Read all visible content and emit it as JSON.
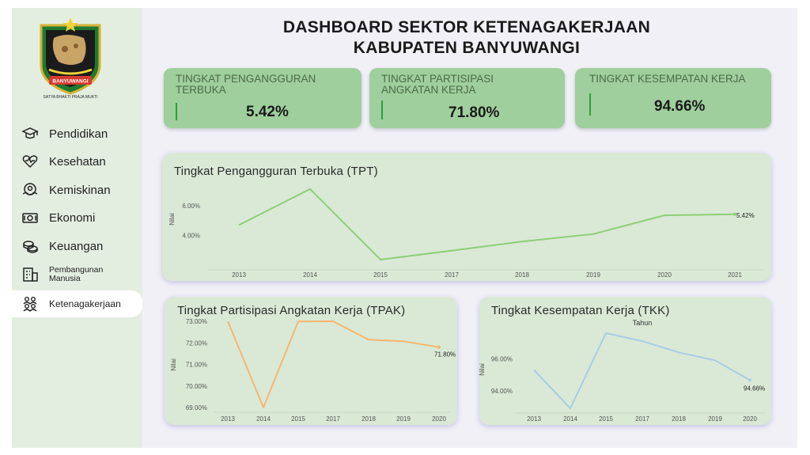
{
  "header": {
    "title_line1": "DASHBOARD SEKTOR KETENAGAKERJAAN",
    "title_line2": "KABUPATEN BANYUWANGI"
  },
  "logo": {
    "ribbon_text": "BANYUWANGI",
    "motto": "SATYA BHAKTI PRAJA MUKTI"
  },
  "sidebar": {
    "items": [
      {
        "label": "Pendidikan",
        "icon": "graduation-cap-icon"
      },
      {
        "label": "Kesehatan",
        "icon": "heart-pulse-icon"
      },
      {
        "label": "Kemiskinan",
        "icon": "hands-circle-icon"
      },
      {
        "label": "Ekonomi",
        "icon": "banknote-icon"
      },
      {
        "label": "Keuangan",
        "icon": "coins-icon"
      },
      {
        "label": "Pembangunan Manusia",
        "icon": "building-icon"
      },
      {
        "label": "Ketenagakerjaan",
        "icon": "people-icon"
      }
    ]
  },
  "kpis": [
    {
      "label": "TINGKAT PENGANGGURAN TERBUKA",
      "value": "5.42%"
    },
    {
      "label": "TINGKAT PARTISIPASI ANGKATAN KERJA",
      "value": "71.80%"
    },
    {
      "label": "TINGKAT KESEMPATAN KERJA",
      "value": "94.66%"
    }
  ],
  "colors": {
    "tpt": "#8ccf76",
    "tpak": "#f7b570",
    "tkk": "#a7cde6",
    "accent": "#2e9e3a"
  },
  "chart_data": [
    {
      "type": "line",
      "title": "Tingkat Pengangguran Terbuka (TPT)",
      "xlabel": "",
      "ylabel": "Nilai",
      "categories": [
        "2013",
        "2014",
        "2015",
        "2017",
        "2018",
        "2019",
        "2020",
        "2021"
      ],
      "values": [
        4.7,
        7.1,
        2.4,
        3.0,
        3.6,
        4.1,
        5.35,
        5.42
      ],
      "ylim": [
        2.3,
        7.2
      ],
      "ticks": [
        4,
        6
      ],
      "tick_labels": [
        "4.00%",
        "6.00%"
      ],
      "end_label": "5.42%"
    },
    {
      "type": "line",
      "title": "Tingkat Partisipasi Angkatan Kerja (TPAK)",
      "xlabel": "",
      "ylabel": "Nilai",
      "categories": [
        "2013",
        "2014",
        "2015",
        "2017",
        "2018",
        "2019",
        "2020"
      ],
      "values": [
        73.0,
        69.0,
        72.99,
        73.0,
        72.15,
        72.07,
        71.8
      ],
      "ylim": [
        69.0,
        73.0
      ],
      "ticks": [
        69,
        70,
        71,
        72,
        73
      ],
      "tick_labels": [
        "69.00%",
        "70.00%",
        "71.00%",
        "72.00%",
        "73.00%"
      ],
      "end_label": "71.80%"
    },
    {
      "type": "line",
      "title": "Tingkat Kesempatan Kerja (TKK)",
      "xlabel": "Tahun",
      "ylabel": "Nilai",
      "categories": [
        "2013",
        "2014",
        "2015",
        "2017",
        "2018",
        "2019",
        "2020"
      ],
      "values": [
        95.3,
        92.9,
        97.6,
        97.1,
        96.4,
        95.9,
        94.66
      ],
      "ylim": [
        92.9,
        97.7
      ],
      "ticks": [
        94,
        96
      ],
      "tick_labels": [
        "94.00%",
        "96.00%"
      ],
      "end_label": "94.66%"
    }
  ]
}
